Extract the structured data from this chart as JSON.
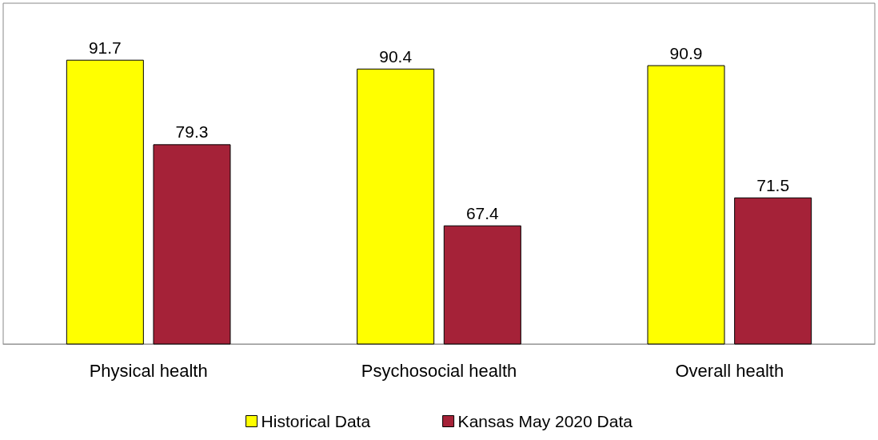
{
  "chart_data": {
    "type": "bar",
    "categories": [
      "Physical health",
      "Psychosocial health",
      "Overall health"
    ],
    "series": [
      {
        "name": "Historical Data",
        "color": "#ffff00",
        "values": [
          91.7,
          90.4,
          90.9
        ]
      },
      {
        "name": "Kansas May 2020 Data",
        "color": "#a52238",
        "values": [
          79.3,
          67.4,
          71.5
        ]
      }
    ],
    "ylim": [
      50,
      100
    ],
    "data_labels": true,
    "legend": "bottom",
    "tick_labels": "x"
  }
}
